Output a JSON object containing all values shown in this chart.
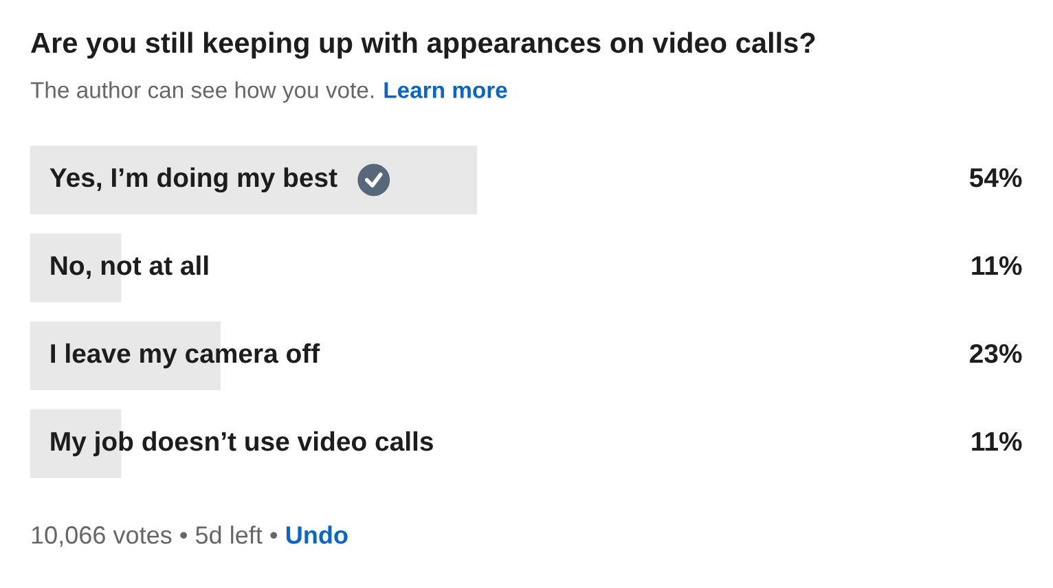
{
  "chart_data": {
    "type": "bar",
    "orientation": "horizontal",
    "title": "Are you still keeping up with appearances on video calls?",
    "subtitle": "The author can see how you vote.",
    "categories": [
      "Yes, I’m doing my best",
      "No, not at all",
      "I leave my camera off",
      "My job doesn’t use video calls"
    ],
    "values": [
      54,
      11,
      23,
      11
    ],
    "value_labels": [
      "54%",
      "11%",
      "23%",
      "11%"
    ],
    "color": "#e8e8e8",
    "annotations": [
      "Learn more",
      "10,066 votes • 5d left •",
      "Undo"
    ]
  }
}
